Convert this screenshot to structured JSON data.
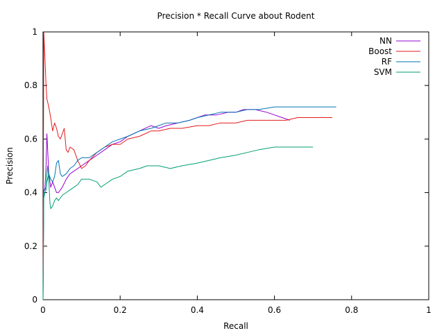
{
  "chart_data": {
    "type": "line",
    "title": "Precision * Recall Curve about Rodent",
    "xlabel": "Recall",
    "ylabel": "Precision",
    "xlim": [
      0,
      1
    ],
    "ylim": [
      0,
      1
    ],
    "x_ticks": [
      "0",
      "0.2",
      "0.4",
      "0.6",
      "0.8",
      "1"
    ],
    "y_ticks": [
      "0",
      "0.2",
      "0.4",
      "0.6",
      "0.8",
      "1"
    ],
    "grid": false,
    "legend_position": "top-right",
    "series": [
      {
        "name": "NN",
        "color": "#9400d3",
        "points": [
          [
            0.0,
            0.0
          ],
          [
            0.002,
            0.4
          ],
          [
            0.005,
            0.42
          ],
          [
            0.008,
            0.5
          ],
          [
            0.01,
            0.62
          ],
          [
            0.012,
            0.56
          ],
          [
            0.015,
            0.47
          ],
          [
            0.018,
            0.44
          ],
          [
            0.02,
            0.42
          ],
          [
            0.025,
            0.44
          ],
          [
            0.03,
            0.42
          ],
          [
            0.035,
            0.4
          ],
          [
            0.04,
            0.4
          ],
          [
            0.05,
            0.42
          ],
          [
            0.06,
            0.45
          ],
          [
            0.07,
            0.47
          ],
          [
            0.08,
            0.48
          ],
          [
            0.1,
            0.5
          ],
          [
            0.12,
            0.52
          ],
          [
            0.14,
            0.54
          ],
          [
            0.16,
            0.56
          ],
          [
            0.18,
            0.58
          ],
          [
            0.2,
            0.59
          ],
          [
            0.22,
            0.61
          ],
          [
            0.25,
            0.63
          ],
          [
            0.28,
            0.65
          ],
          [
            0.3,
            0.64
          ],
          [
            0.32,
            0.65
          ],
          [
            0.35,
            0.66
          ],
          [
            0.38,
            0.67
          ],
          [
            0.4,
            0.68
          ],
          [
            0.42,
            0.69
          ],
          [
            0.45,
            0.69
          ],
          [
            0.48,
            0.7
          ],
          [
            0.5,
            0.7
          ],
          [
            0.52,
            0.71
          ],
          [
            0.55,
            0.71
          ],
          [
            0.58,
            0.7
          ],
          [
            0.6,
            0.69
          ],
          [
            0.62,
            0.68
          ],
          [
            0.64,
            0.67
          ]
        ]
      },
      {
        "name": "Boost",
        "color": "#e31a1c",
        "points": [
          [
            0.0,
            0.0
          ],
          [
            0.002,
            1.0
          ],
          [
            0.005,
            0.9
          ],
          [
            0.008,
            0.8
          ],
          [
            0.01,
            0.75
          ],
          [
            0.015,
            0.72
          ],
          [
            0.02,
            0.68
          ],
          [
            0.025,
            0.63
          ],
          [
            0.03,
            0.66
          ],
          [
            0.035,
            0.64
          ],
          [
            0.04,
            0.61
          ],
          [
            0.045,
            0.6
          ],
          [
            0.05,
            0.62
          ],
          [
            0.055,
            0.64
          ],
          [
            0.06,
            0.56
          ],
          [
            0.065,
            0.55
          ],
          [
            0.07,
            0.57
          ],
          [
            0.08,
            0.56
          ],
          [
            0.09,
            0.52
          ],
          [
            0.1,
            0.49
          ],
          [
            0.11,
            0.5
          ],
          [
            0.12,
            0.52
          ],
          [
            0.14,
            0.55
          ],
          [
            0.16,
            0.57
          ],
          [
            0.18,
            0.58
          ],
          [
            0.2,
            0.58
          ],
          [
            0.22,
            0.6
          ],
          [
            0.25,
            0.61
          ],
          [
            0.28,
            0.63
          ],
          [
            0.3,
            0.63
          ],
          [
            0.33,
            0.64
          ],
          [
            0.36,
            0.64
          ],
          [
            0.4,
            0.65
          ],
          [
            0.43,
            0.65
          ],
          [
            0.46,
            0.66
          ],
          [
            0.5,
            0.66
          ],
          [
            0.53,
            0.67
          ],
          [
            0.56,
            0.67
          ],
          [
            0.6,
            0.67
          ],
          [
            0.63,
            0.67
          ],
          [
            0.66,
            0.68
          ],
          [
            0.7,
            0.68
          ],
          [
            0.75,
            0.68
          ]
        ]
      },
      {
        "name": "RF",
        "color": "#0072b2",
        "points": [
          [
            0.0,
            0.0
          ],
          [
            0.002,
            0.41
          ],
          [
            0.005,
            0.41
          ],
          [
            0.008,
            0.42
          ],
          [
            0.01,
            0.44
          ],
          [
            0.015,
            0.47
          ],
          [
            0.02,
            0.45
          ],
          [
            0.025,
            0.44
          ],
          [
            0.03,
            0.46
          ],
          [
            0.035,
            0.51
          ],
          [
            0.04,
            0.52
          ],
          [
            0.045,
            0.47
          ],
          [
            0.05,
            0.46
          ],
          [
            0.06,
            0.47
          ],
          [
            0.07,
            0.49
          ],
          [
            0.08,
            0.5
          ],
          [
            0.09,
            0.52
          ],
          [
            0.1,
            0.53
          ],
          [
            0.12,
            0.53
          ],
          [
            0.14,
            0.55
          ],
          [
            0.16,
            0.57
          ],
          [
            0.18,
            0.59
          ],
          [
            0.2,
            0.6
          ],
          [
            0.22,
            0.61
          ],
          [
            0.25,
            0.63
          ],
          [
            0.28,
            0.64
          ],
          [
            0.3,
            0.65
          ],
          [
            0.32,
            0.66
          ],
          [
            0.35,
            0.66
          ],
          [
            0.38,
            0.67
          ],
          [
            0.4,
            0.68
          ],
          [
            0.43,
            0.69
          ],
          [
            0.46,
            0.7
          ],
          [
            0.5,
            0.7
          ],
          [
            0.53,
            0.71
          ],
          [
            0.56,
            0.71
          ],
          [
            0.6,
            0.72
          ],
          [
            0.63,
            0.72
          ],
          [
            0.66,
            0.72
          ],
          [
            0.7,
            0.72
          ],
          [
            0.73,
            0.72
          ],
          [
            0.76,
            0.72
          ]
        ]
      },
      {
        "name": "SVM",
        "color": "#009e73",
        "points": [
          [
            0.0,
            0.0
          ],
          [
            0.002,
            0.38
          ],
          [
            0.005,
            0.4
          ],
          [
            0.008,
            0.41
          ],
          [
            0.01,
            0.47
          ],
          [
            0.012,
            0.5
          ],
          [
            0.015,
            0.45
          ],
          [
            0.018,
            0.36
          ],
          [
            0.02,
            0.34
          ],
          [
            0.025,
            0.35
          ],
          [
            0.03,
            0.37
          ],
          [
            0.035,
            0.38
          ],
          [
            0.04,
            0.37
          ],
          [
            0.05,
            0.39
          ],
          [
            0.06,
            0.4
          ],
          [
            0.07,
            0.41
          ],
          [
            0.08,
            0.42
          ],
          [
            0.09,
            0.43
          ],
          [
            0.1,
            0.45
          ],
          [
            0.12,
            0.45
          ],
          [
            0.14,
            0.44
          ],
          [
            0.15,
            0.42
          ],
          [
            0.16,
            0.43
          ],
          [
            0.18,
            0.45
          ],
          [
            0.2,
            0.46
          ],
          [
            0.22,
            0.48
          ],
          [
            0.25,
            0.49
          ],
          [
            0.27,
            0.5
          ],
          [
            0.3,
            0.5
          ],
          [
            0.33,
            0.49
          ],
          [
            0.36,
            0.5
          ],
          [
            0.4,
            0.51
          ],
          [
            0.43,
            0.52
          ],
          [
            0.46,
            0.53
          ],
          [
            0.5,
            0.54
          ],
          [
            0.53,
            0.55
          ],
          [
            0.56,
            0.56
          ],
          [
            0.6,
            0.57
          ],
          [
            0.63,
            0.57
          ],
          [
            0.66,
            0.57
          ],
          [
            0.7,
            0.57
          ]
        ]
      }
    ]
  }
}
